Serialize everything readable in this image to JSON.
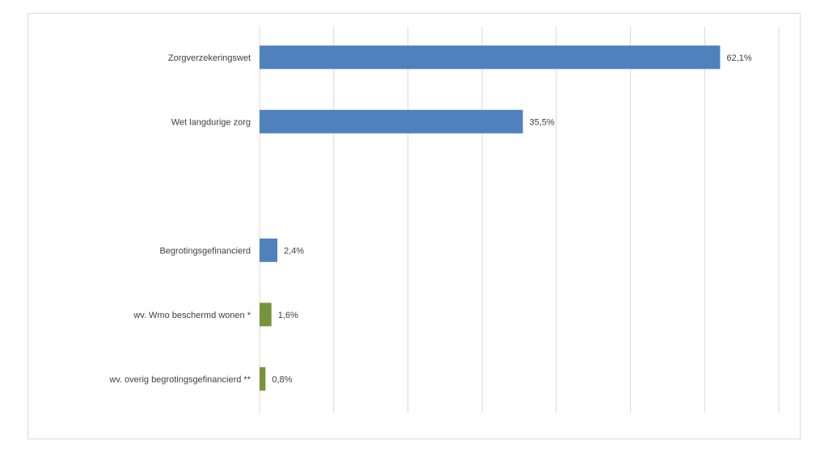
{
  "chart_data": {
    "type": "bar",
    "orientation": "horizontal",
    "xlim": [
      0,
      70
    ],
    "grid": true,
    "categories": [
      "Zorgverzekeringswet",
      "Wet langdurige zorg",
      "",
      "Begrotingsgefinancierd",
      "wv. Wmo beschermd wonen *",
      "wv. overig begrotingsgefinancierd **"
    ],
    "values": [
      62.1,
      35.5,
      null,
      2.4,
      1.6,
      0.8
    ],
    "data_labels": [
      "62,1%",
      "35,5%",
      "",
      "2,4%",
      "1,6%",
      "0,8%"
    ],
    "bar_colors": [
      "#4f81bd",
      "#4f81bd",
      "",
      "#4f81bd",
      "#77933c",
      "#77933c"
    ]
  },
  "colors": {
    "gridline": "#d9d9d9",
    "frame": "#d9d9d9",
    "text": "#404040"
  }
}
